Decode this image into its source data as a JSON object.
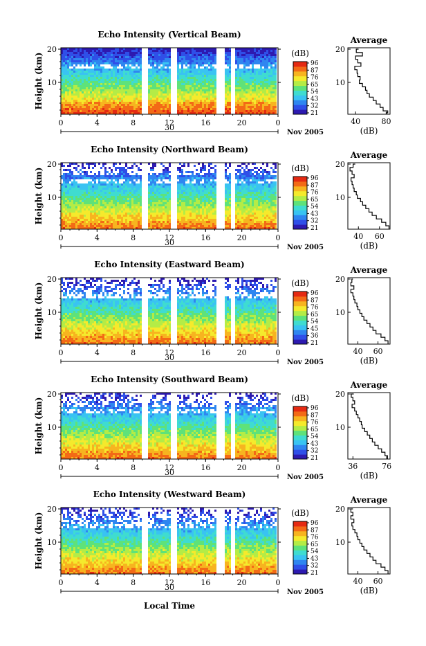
{
  "figure": {
    "panels": [
      {
        "title": "Echo Intensity (Vertical Beam)",
        "cbar_ticks": [
          "96",
          "87",
          "76",
          "65",
          "54",
          "43",
          "32",
          "21"
        ],
        "avg_xticks": [
          "40",
          "80"
        ],
        "avg_xlim": [
          30,
          85
        ],
        "avg_profile": [
          [
            20,
            44
          ],
          [
            19,
            41
          ],
          [
            18,
            49
          ],
          [
            17,
            40
          ],
          [
            16,
            43
          ],
          [
            15,
            47
          ],
          [
            14,
            39
          ],
          [
            13,
            42
          ],
          [
            12,
            43
          ],
          [
            11,
            46
          ],
          [
            10,
            45
          ],
          [
            9,
            49
          ],
          [
            8,
            53
          ],
          [
            7,
            55
          ],
          [
            6,
            58
          ],
          [
            5,
            63
          ],
          [
            4,
            67
          ],
          [
            3,
            72
          ],
          [
            2,
            76
          ],
          [
            1.4,
            82
          ],
          [
            1,
            80
          ]
        ]
      },
      {
        "title": "Echo Intensity (Northward Beam)",
        "cbar_ticks": [
          "96",
          "87",
          "76",
          "65",
          "54",
          "43",
          "32",
          "21"
        ],
        "avg_xticks": [
          "40",
          "60"
        ],
        "avg_xlim": [
          30,
          70
        ],
        "avg_profile": [
          [
            20,
            37
          ],
          [
            19,
            35
          ],
          [
            18,
            32
          ],
          [
            17,
            34
          ],
          [
            16,
            36
          ],
          [
            15,
            33
          ],
          [
            14,
            34
          ],
          [
            13,
            35
          ],
          [
            12,
            36
          ],
          [
            11,
            38
          ],
          [
            10,
            39
          ],
          [
            9,
            42
          ],
          [
            8,
            44
          ],
          [
            7,
            47
          ],
          [
            6,
            50
          ],
          [
            5,
            53
          ],
          [
            4,
            57
          ],
          [
            3,
            62
          ],
          [
            2,
            66
          ],
          [
            1,
            69
          ]
        ]
      },
      {
        "title": "Echo Intensity (Eastward Beam)",
        "cbar_ticks": [
          "96",
          "87",
          "76",
          "65",
          "54",
          "45",
          "36",
          "21"
        ],
        "avg_xticks": [
          "40",
          "60"
        ],
        "avg_xlim": [
          30,
          72
        ],
        "avg_profile": [
          [
            20,
            35
          ],
          [
            19,
            34
          ],
          [
            18,
            33
          ],
          [
            17,
            36
          ],
          [
            16,
            33
          ],
          [
            15,
            35
          ],
          [
            14,
            36
          ],
          [
            13,
            37
          ],
          [
            12,
            39
          ],
          [
            11,
            40
          ],
          [
            10,
            42
          ],
          [
            9,
            44
          ],
          [
            8,
            46
          ],
          [
            7,
            49
          ],
          [
            6,
            52
          ],
          [
            5,
            55
          ],
          [
            4,
            58
          ],
          [
            3,
            63
          ],
          [
            2,
            67
          ],
          [
            1,
            70
          ]
        ]
      },
      {
        "title": "Echo Intensity (Southward Beam)",
        "cbar_ticks": [
          "96",
          "87",
          "76",
          "65",
          "54",
          "43",
          "32",
          "21"
        ],
        "avg_xticks": [
          "36",
          "76"
        ],
        "avg_xlim": [
          30,
          80
        ],
        "avg_profile": [
          [
            20,
            37
          ],
          [
            19,
            34
          ],
          [
            18,
            36
          ],
          [
            17,
            38
          ],
          [
            16,
            35
          ],
          [
            15,
            38
          ],
          [
            14,
            40
          ],
          [
            13,
            42
          ],
          [
            12,
            44
          ],
          [
            11,
            46
          ],
          [
            10,
            47
          ],
          [
            9,
            50
          ],
          [
            8,
            53
          ],
          [
            7,
            56
          ],
          [
            6,
            59
          ],
          [
            5,
            62
          ],
          [
            4,
            66
          ],
          [
            3,
            70
          ],
          [
            2,
            74
          ],
          [
            1,
            77
          ]
        ]
      },
      {
        "title": "Echo Intensity (Westward Beam)",
        "cbar_ticks": [
          "96",
          "87",
          "76",
          "65",
          "54",
          "43",
          "32",
          "21"
        ],
        "avg_xticks": [
          "40",
          "60"
        ],
        "avg_xlim": [
          30,
          72
        ],
        "avg_profile": [
          [
            20,
            35
          ],
          [
            19,
            33
          ],
          [
            18,
            35
          ],
          [
            17,
            33
          ],
          [
            16,
            36
          ],
          [
            15,
            34
          ],
          [
            14,
            35
          ],
          [
            13,
            37
          ],
          [
            12,
            39
          ],
          [
            11,
            40
          ],
          [
            10,
            42
          ],
          [
            9,
            44
          ],
          [
            8,
            46
          ],
          [
            7,
            49
          ],
          [
            6,
            52
          ],
          [
            5,
            55
          ],
          [
            4,
            58
          ],
          [
            3,
            63
          ],
          [
            2,
            67
          ],
          [
            1,
            70
          ]
        ]
      }
    ],
    "ylabel": "Height (km)",
    "ytick_labels": [
      "20",
      "10"
    ],
    "xtick_labels": [
      "0",
      "4",
      "8",
      "12",
      "16",
      "20",
      "0"
    ],
    "date_day": "30",
    "date_month": "Nov 2005",
    "cbar_label": "(dB)",
    "avg_title": "Average",
    "avg_xlabel": "(dB)",
    "xlabel": "Local Time"
  },
  "chart_data": {
    "type": "heatmap",
    "description_series": [
      "Vertical Beam",
      "Northward Beam",
      "Eastward Beam",
      "Southward Beam",
      "Westward Beam"
    ],
    "x_range_hours": [
      0,
      24
    ],
    "y_range_km": [
      1,
      20
    ],
    "color_range_db": [
      21,
      96
    ],
    "data_gaps_hours": [
      [
        9.5,
        10.0
      ],
      [
        12.3,
        12.8
      ],
      [
        17.5,
        18.2
      ],
      [
        19.2,
        19.6
      ]
    ]
  },
  "colors": {
    "scale": [
      "#2d1ab0",
      "#2f4fe8",
      "#2f86f0",
      "#39c3f2",
      "#3fdcd0",
      "#5ee27a",
      "#b4ec46",
      "#f5ea2c",
      "#f7b41f",
      "#f36a16",
      "#e52a12"
    ]
  }
}
